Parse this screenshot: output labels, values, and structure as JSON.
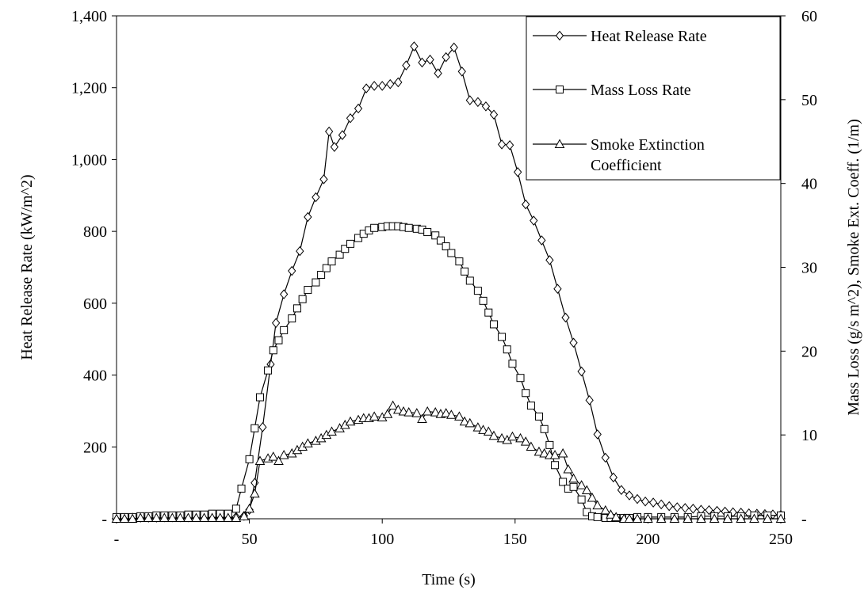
{
  "chart_data": {
    "type": "line",
    "xlabel": "Time (s)",
    "ylabel_left": "Heat Release Rate (kW/m^2)",
    "ylabel_right": "Mass Loss (g/s m^2), Smoke Ext. Coeff. (1/m)",
    "xlim": [
      0,
      250
    ],
    "ylim_left": [
      0,
      1400
    ],
    "ylim_right": [
      0,
      60
    ],
    "x_ticks": [
      0,
      50,
      100,
      150,
      200,
      250
    ],
    "x_tick_labels": [
      "-",
      "50",
      "100",
      "150",
      "200",
      "250"
    ],
    "y_left_ticks": [
      0,
      200,
      400,
      600,
      800,
      1000,
      1200,
      1400
    ],
    "y_left_tick_labels": [
      "-",
      "200",
      "400",
      "600",
      "800",
      "1,000",
      "1,200",
      "1,400"
    ],
    "y_right_ticks": [
      0,
      10,
      20,
      30,
      40,
      50,
      60
    ],
    "y_right_tick_labels": [
      "-",
      "10",
      "20",
      "30",
      "40",
      "50",
      "60"
    ],
    "grid": false,
    "legend_position": "top-right",
    "series": [
      {
        "name": "Heat Release Rate",
        "axis": "left",
        "marker": "diamond",
        "x": [
          0,
          3,
          6,
          9,
          12,
          15,
          18,
          21,
          24,
          27,
          30,
          33,
          36,
          39,
          42,
          45,
          48,
          50,
          52,
          55,
          58,
          60,
          63,
          66,
          69,
          72,
          75,
          78,
          80,
          82,
          85,
          88,
          91,
          94,
          97,
          100,
          103,
          106,
          109,
          112,
          115,
          118,
          121,
          124,
          127,
          130,
          133,
          136,
          139,
          142,
          145,
          148,
          151,
          154,
          157,
          160,
          163,
          166,
          169,
          172,
          175,
          178,
          181,
          184,
          187,
          190,
          193,
          196,
          199,
          202,
          205,
          208,
          211,
          214,
          217,
          220,
          223,
          226,
          229,
          232,
          235,
          238,
          241,
          244,
          247,
          250
        ],
        "values": [
          2,
          2,
          3,
          3,
          3,
          3,
          4,
          4,
          4,
          4,
          5,
          5,
          5,
          5,
          5,
          5,
          8,
          25,
          100,
          255,
          430,
          545,
          625,
          690,
          745,
          840,
          895,
          945,
          1078,
          1035,
          1068,
          1115,
          1142,
          1198,
          1205,
          1205,
          1210,
          1215,
          1262,
          1315,
          1270,
          1278,
          1240,
          1285,
          1312,
          1245,
          1165,
          1160,
          1148,
          1125,
          1042,
          1040,
          965,
          875,
          830,
          775,
          720,
          640,
          560,
          490,
          410,
          330,
          235,
          170,
          115,
          80,
          65,
          55,
          48,
          45,
          40,
          35,
          32,
          30,
          28,
          25,
          24,
          22,
          20,
          18,
          17,
          15,
          14,
          13,
          12,
          11
        ]
      },
      {
        "name": "Mass Loss Rate",
        "axis": "right",
        "marker": "square",
        "x": [
          0,
          3,
          6,
          9,
          12,
          15,
          18,
          21,
          24,
          27,
          30,
          33,
          36,
          39,
          42,
          45,
          47,
          50,
          52,
          54,
          57,
          59,
          61,
          63,
          66,
          68,
          70,
          72,
          75,
          77,
          79,
          81,
          84,
          86,
          88,
          91,
          93,
          95,
          97,
          100,
          102,
          104,
          106,
          108,
          110,
          113,
          115,
          117,
          120,
          122,
          124,
          126,
          129,
          131,
          133,
          136,
          138,
          140,
          142,
          145,
          147,
          149,
          152,
          154,
          156,
          159,
          161,
          163,
          165,
          168,
          170,
          172,
          175,
          177,
          179,
          181,
          184,
          186,
          188,
          191,
          193,
          196,
          200,
          205,
          210,
          215,
          220,
          225,
          230,
          235,
          240,
          245,
          250
        ],
        "values": [
          0.2,
          0.2,
          0.2,
          0.3,
          0.3,
          0.4,
          0.4,
          0.4,
          0.4,
          0.5,
          0.5,
          0.5,
          0.6,
          0.6,
          0.6,
          1.2,
          3.6,
          7.1,
          10.8,
          14.5,
          17.7,
          20.1,
          21.3,
          22.5,
          23.9,
          25.1,
          26.2,
          27.3,
          28.2,
          29.1,
          29.9,
          30.7,
          31.5,
          32.2,
          32.8,
          33.5,
          34.0,
          34.4,
          34.7,
          34.8,
          34.9,
          34.9,
          34.9,
          34.8,
          34.7,
          34.6,
          34.5,
          34.2,
          33.8,
          33.2,
          32.5,
          31.7,
          30.7,
          29.5,
          28.4,
          27.2,
          26.0,
          24.6,
          23.2,
          21.7,
          20.2,
          18.5,
          16.8,
          15.0,
          13.5,
          12.2,
          10.7,
          8.8,
          6.4,
          4.4,
          3.6,
          3.8,
          2.3,
          0.8,
          0.3,
          0.2,
          0.1,
          0.1,
          0.1,
          0.1,
          0.1,
          0.2,
          0.2,
          0.2,
          0.2,
          0.2,
          0.3,
          0.3,
          0.3,
          0.3,
          0.4,
          0.4,
          0.4
        ]
      },
      {
        "name": "Smoke Extinction Coefficient",
        "axis": "right",
        "marker": "triangle",
        "x": [
          0,
          3,
          6,
          9,
          12,
          15,
          18,
          21,
          24,
          27,
          30,
          33,
          36,
          39,
          42,
          45,
          48,
          50,
          52,
          54,
          57,
          59,
          61,
          63,
          66,
          68,
          70,
          72,
          75,
          77,
          79,
          81,
          84,
          86,
          88,
          91,
          93,
          95,
          97,
          100,
          102,
          104,
          106,
          108,
          110,
          113,
          115,
          117,
          120,
          122,
          124,
          126,
          129,
          131,
          133,
          136,
          138,
          140,
          142,
          145,
          147,
          149,
          152,
          154,
          156,
          159,
          161,
          163,
          165,
          168,
          170,
          172,
          175,
          177,
          179,
          181,
          184,
          186,
          188,
          191,
          193,
          196,
          200,
          205,
          210,
          215,
          220,
          225,
          230,
          235,
          240,
          245,
          250
        ],
        "values": [
          0,
          0,
          0,
          0.1,
          0.1,
          0.1,
          0.1,
          0.1,
          0.1,
          0.1,
          0.1,
          0.1,
          0.1,
          0.1,
          0.1,
          0.1,
          0.3,
          1.2,
          3.0,
          6.9,
          7.2,
          7.4,
          6.9,
          7.6,
          7.8,
          8.2,
          8.6,
          9.0,
          9.3,
          9.6,
          10.0,
          10.4,
          10.8,
          11.2,
          11.6,
          11.8,
          12.0,
          12.0,
          12.2,
          12.1,
          12.5,
          13.5,
          13.0,
          12.8,
          12.7,
          12.6,
          11.9,
          12.8,
          12.7,
          12.5,
          12.6,
          12.4,
          12.2,
          11.6,
          11.4,
          10.9,
          10.6,
          10.4,
          9.9,
          9.6,
          9.4,
          9.8,
          9.6,
          9.2,
          8.6,
          8.0,
          7.8,
          7.6,
          7.6,
          7.8,
          5.9,
          4.8,
          4.0,
          3.4,
          2.5,
          1.6,
          1.0,
          0.5,
          0.2,
          0,
          0,
          0,
          0,
          0,
          0,
          0,
          0,
          0,
          0,
          0,
          0,
          0,
          0
        ]
      }
    ]
  }
}
